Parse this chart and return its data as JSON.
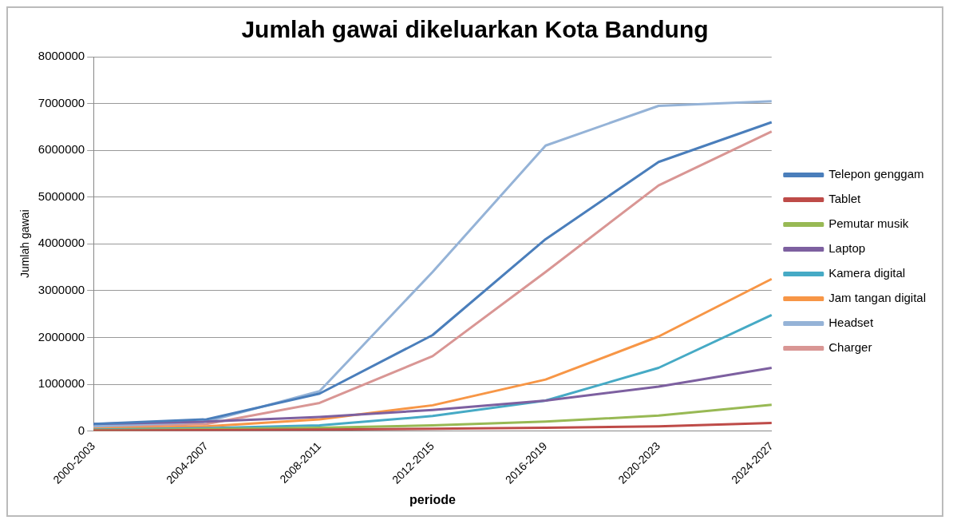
{
  "chart_data": {
    "type": "line",
    "title": "Jumlah gawai dikeluarkan Kota Bandung",
    "xlabel": "periode",
    "ylabel": "Jumlah gawai",
    "categories": [
      "2000-2003",
      "2004-2007",
      "2008-2011",
      "2012-2015",
      "2016-2019",
      "2020-2023",
      "2024-2027"
    ],
    "series": [
      {
        "name": "Telepon genggam",
        "color": "#4a7ebb",
        "values": [
          150000,
          250000,
          800000,
          2050000,
          4100000,
          5750000,
          6600000
        ]
      },
      {
        "name": "Tablet",
        "color": "#be4b48",
        "values": [
          10000,
          20000,
          30000,
          50000,
          70000,
          100000,
          170000
        ]
      },
      {
        "name": "Pemutar musik",
        "color": "#98b954",
        "values": [
          20000,
          40000,
          70000,
          120000,
          200000,
          330000,
          560000
        ]
      },
      {
        "name": "Laptop",
        "color": "#7d60a0",
        "values": [
          150000,
          200000,
          300000,
          450000,
          650000,
          950000,
          1350000
        ]
      },
      {
        "name": "Kamera digital",
        "color": "#46aac5",
        "values": [
          30000,
          60000,
          120000,
          320000,
          650000,
          1350000,
          2480000
        ]
      },
      {
        "name": "Jam tangan digital",
        "color": "#f79646",
        "values": [
          50000,
          100000,
          250000,
          550000,
          1100000,
          2020000,
          3250000
        ]
      },
      {
        "name": "Headset",
        "color": "#95b3d7",
        "values": [
          100000,
          200000,
          850000,
          3400000,
          6100000,
          6950000,
          7050000
        ]
      },
      {
        "name": "Charger",
        "color": "#d99694",
        "values": [
          80000,
          150000,
          600000,
          1600000,
          3400000,
          5250000,
          6400000
        ]
      }
    ],
    "ylim": [
      0,
      8000000
    ],
    "yticks": [
      0,
      1000000,
      2000000,
      3000000,
      4000000,
      5000000,
      6000000,
      7000000,
      8000000
    ],
    "grid": "y",
    "legend": "right",
    "marker": "none",
    "line_style": "solid"
  }
}
